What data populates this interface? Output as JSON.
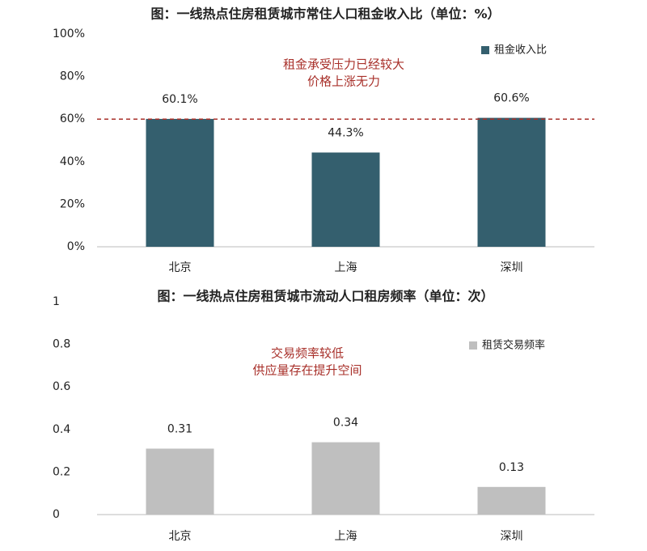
{
  "chart_data": [
    {
      "type": "bar",
      "title": "图：一线热点住房租赁城市常住人口租金收入比（单位：%）",
      "categories": [
        "北京",
        "上海",
        "深圳"
      ],
      "series": [
        {
          "name": "租金收入比",
          "color": "#345f6e",
          "values": [
            60.1,
            44.3,
            60.6
          ],
          "value_labels": [
            "60.1%",
            "44.3%",
            "60.6%"
          ]
        }
      ],
      "ylim": [
        0,
        100
      ],
      "yticks": [
        {
          "value": 0,
          "label": "0%"
        },
        {
          "value": 20,
          "label": "20%"
        },
        {
          "value": 40,
          "label": "40%"
        },
        {
          "value": 60,
          "label": "60%"
        },
        {
          "value": 80,
          "label": "80%"
        },
        {
          "value": 100,
          "label": "100%"
        }
      ],
      "reference_line": 60,
      "reference_color": "#a8302a",
      "annotations": [
        "租金承受压力已经较大",
        "价格上涨无力"
      ],
      "legend": "top-right"
    },
    {
      "type": "bar",
      "title": "图：一线热点住房租赁城市流动人口租房频率（单位：次）",
      "categories": [
        "北京",
        "上海",
        "深圳"
      ],
      "series": [
        {
          "name": "租赁交易频率",
          "color": "#bfbfbf",
          "values": [
            0.31,
            0.34,
            0.13
          ]
        }
      ],
      "ylim": [
        0,
        1
      ],
      "yticks": [
        0,
        0.2,
        0.4,
        0.6,
        0.8,
        1
      ],
      "annotations": [
        "交易频率较低",
        "供应量存在提升空间"
      ],
      "legend": "top-right"
    }
  ]
}
